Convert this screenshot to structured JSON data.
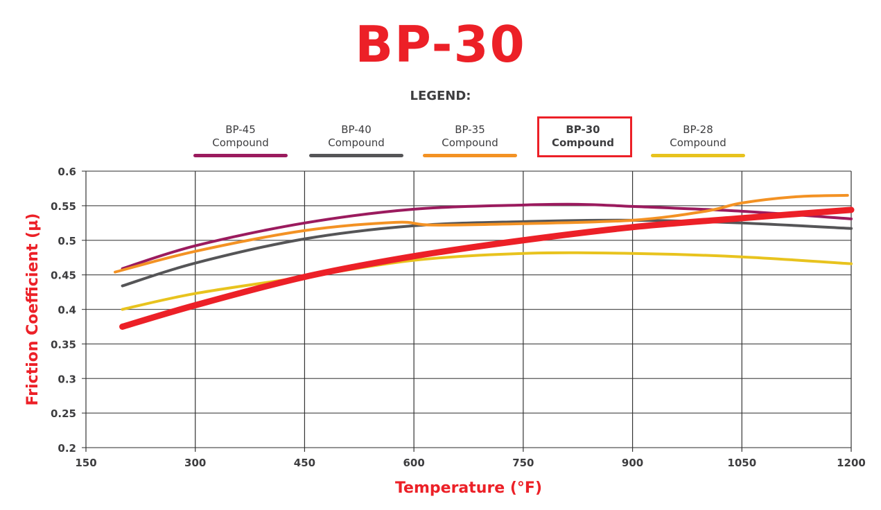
{
  "chart_data": {
    "type": "line",
    "title": "BP-30",
    "legend_title": "LEGEND:",
    "xlabel": "Temperature (°F)",
    "ylabel": "Friction Coefficient (µ)",
    "xlim": [
      150,
      1200
    ],
    "ylim": [
      0.2,
      0.6
    ],
    "x_ticks": [
      "150",
      "300",
      "450",
      "600",
      "750",
      "900",
      "1050",
      "1200"
    ],
    "y_ticks": [
      "0.2",
      "0.25",
      "0.3",
      "0.35",
      "0.4",
      "0.45",
      "0.5",
      "0.55",
      "0.6"
    ],
    "grid": true,
    "legend_position": "top",
    "highlighted_series": "BP-30",
    "series": [
      {
        "name": "BP-45",
        "label2": "Compound",
        "color": "#9b1b5e",
        "width": 4,
        "x": [
          200,
          300,
          450,
          600,
          750,
          825,
          900,
          1050,
          1200
        ],
        "y": [
          0.459,
          0.492,
          0.525,
          0.545,
          0.551,
          0.552,
          0.549,
          0.542,
          0.531
        ]
      },
      {
        "name": "BP-40",
        "label2": "Compound",
        "color": "#555557",
        "width": 4,
        "x": [
          200,
          300,
          450,
          600,
          750,
          900,
          1050,
          1200
        ],
        "y": [
          0.434,
          0.467,
          0.502,
          0.521,
          0.527,
          0.529,
          0.525,
          0.517
        ]
      },
      {
        "name": "BP-35",
        "label2": "Compound",
        "color": "#f39224",
        "width": 4,
        "x": [
          190,
          300,
          450,
          575,
          625,
          750,
          900,
          1000,
          1050,
          1125,
          1195
        ],
        "y": [
          0.454,
          0.484,
          0.514,
          0.526,
          0.522,
          0.524,
          0.529,
          0.542,
          0.554,
          0.563,
          0.565
        ]
      },
      {
        "name": "BP-30",
        "label2": "Compound",
        "color": "#ec2027",
        "width": 9,
        "x": [
          200,
          300,
          450,
          600,
          750,
          900,
          1050,
          1200
        ],
        "y": [
          0.375,
          0.406,
          0.447,
          0.477,
          0.5,
          0.519,
          0.532,
          0.544
        ]
      },
      {
        "name": "BP-28",
        "label2": "Compound",
        "color": "#e8c31e",
        "width": 4,
        "x": [
          200,
          300,
          450,
          600,
          750,
          900,
          1050,
          1200
        ],
        "y": [
          0.4,
          0.423,
          0.447,
          0.471,
          0.481,
          0.481,
          0.476,
          0.466
        ]
      }
    ]
  }
}
